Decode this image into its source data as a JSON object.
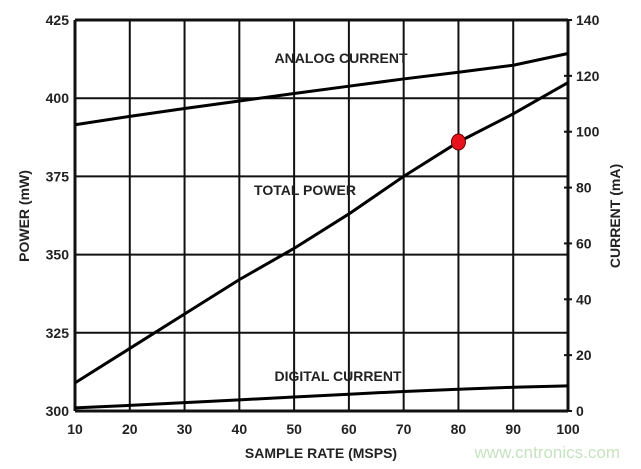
{
  "chart_data": {
    "type": "line",
    "title": "",
    "xlabel": "SAMPLE RATE (MSPS)",
    "ylabel": "POWER (mW)",
    "y2label": "CURRENT (mA)",
    "xlim": [
      10,
      100
    ],
    "ylim": [
      300,
      425
    ],
    "y2lim": [
      0,
      140
    ],
    "grid": true,
    "x_ticks": [
      "10",
      "20",
      "30",
      "40",
      "50",
      "60",
      "70",
      "80",
      "90",
      "100"
    ],
    "y_ticks": [
      "300",
      "325",
      "350",
      "375",
      "400",
      "425"
    ],
    "y2_ticks": [
      "0",
      "20",
      "40",
      "60",
      "80",
      "100",
      "120",
      "140"
    ],
    "series": [
      {
        "name": "ANALOG CURRENT",
        "axis": "right",
        "x": [
          10,
          20,
          30,
          40,
          50,
          60,
          70,
          80,
          90,
          100
        ],
        "values": [
          102.5,
          105.5,
          108.3,
          111,
          113.7,
          116.3,
          118.9,
          121.3,
          123.8,
          128
        ]
      },
      {
        "name": "TOTAL POWER",
        "axis": "left",
        "x": [
          10,
          20,
          30,
          40,
          50,
          60,
          70,
          80,
          90,
          100
        ],
        "values": [
          309,
          320,
          331,
          342,
          352,
          363,
          375,
          386,
          395,
          405
        ]
      },
      {
        "name": "DIGITAL CURRENT",
        "axis": "right",
        "x": [
          10,
          20,
          30,
          40,
          50,
          60,
          70,
          80,
          90,
          100
        ],
        "values": [
          1.1,
          2,
          3,
          4,
          5,
          6,
          7,
          7.8,
          8.5,
          9
        ]
      }
    ],
    "highlight_point": {
      "x": 80,
      "y": 386,
      "axis": "left",
      "color": "#e8141c"
    },
    "line_color": "#000000",
    "watermark": "www.cntronics.com"
  }
}
